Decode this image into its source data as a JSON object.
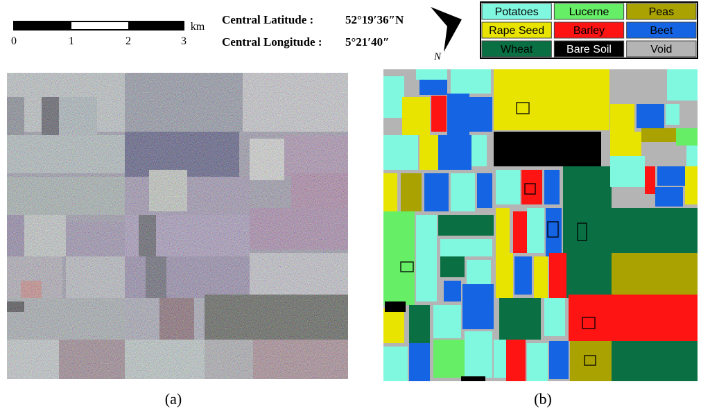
{
  "scale_bar": {
    "labels": [
      "0",
      "1",
      "2",
      "3"
    ],
    "unit": "km"
  },
  "center": {
    "latitude_label": "Central Latitude :",
    "latitude": "52°19′36″N",
    "longitude_label": "Central Longitude :",
    "longitude": "5°21′40″"
  },
  "north_label": "N",
  "legend": [
    {
      "label": "Potatoes",
      "color": "#80f8e0"
    },
    {
      "label": "Lucerne",
      "color": "#66ee66"
    },
    {
      "label": "Peas",
      "color": "#aaa200"
    },
    {
      "label": "Rape Seed",
      "color": "#e8e400"
    },
    {
      "label": "Barley",
      "color": "#ff1414"
    },
    {
      "label": "Beet",
      "color": "#1464e4"
    },
    {
      "label": "Wheat",
      "color": "#0a7044"
    },
    {
      "label": "Bare Soil",
      "color": "#000000"
    },
    {
      "label": "Void",
      "color": "#b4b4b4"
    }
  ],
  "panels": [
    {
      "label": "(a)"
    },
    {
      "label": "(b)"
    }
  ]
}
